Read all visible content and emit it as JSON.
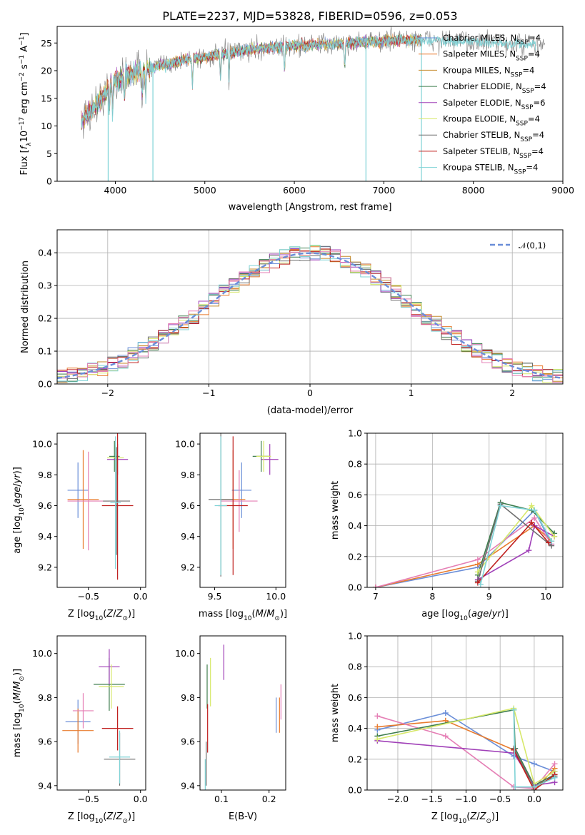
{
  "title": "PLATE=2237, MJD=53828, FIBERID=0596, z=0.053",
  "colors": [
    "#6a8ed8",
    "#e87b2e",
    "#c58a2a",
    "#3e7d4e",
    "#a040b8",
    "#d7e86a",
    "#6e6e6e",
    "#c0201f",
    "#7fd3d6",
    "#e57fb5"
  ],
  "chart_data": [
    {
      "id": "spectrum",
      "type": "line",
      "xlabel": "wavelength [Angstrom, rest frame]",
      "ylabel": "Flux [f_λ 10^-17 erg cm^-2 s^-1 A^-1]",
      "xlim": [
        3350,
        9000
      ],
      "ylim": [
        0,
        28
      ],
      "xticks": [
        4000,
        5000,
        6000,
        7000,
        8000,
        9000
      ],
      "yticks": [
        0,
        5,
        10,
        15,
        20,
        25
      ],
      "legend_position": "upper right",
      "series": [
        {
          "name": "Chabrier MILES, N_SSP=4",
          "color": "#6a8ed8"
        },
        {
          "name": "Salpeter MILES, N_SSP=4",
          "color": "#e87b2e"
        },
        {
          "name": "Kroupa MILES, N_SSP=4",
          "color": "#c58a2a"
        },
        {
          "name": "Chabrier ELODIE, N_SSP=4",
          "color": "#3e7d4e"
        },
        {
          "name": "Salpeter ELODIE, N_SSP=6",
          "color": "#a040b8"
        },
        {
          "name": "Kroupa ELODIE, N_SSP=4",
          "color": "#d7e86a"
        },
        {
          "name": "Chabrier STELIB, N_SSP=4",
          "color": "#6e6e6e"
        },
        {
          "name": "Salpeter STELIB, N_SSP=4",
          "color": "#c0201f"
        },
        {
          "name": "Kroupa STELIB, N_SSP=4",
          "color": "#7fd3d6"
        }
      ],
      "continuum": {
        "x": [
          3620,
          3800,
          3950,
          4100,
          4400,
          4800,
          5200,
          5600,
          6000,
          6400,
          6800,
          7200,
          7500,
          8000,
          8500,
          8800
        ],
        "y": [
          11,
          14,
          17.5,
          19,
          20.5,
          22,
          23,
          24,
          24.5,
          24.8,
          25.2,
          25.6,
          25.5,
          25.2,
          24.8,
          24.5
        ]
      },
      "dips": [
        {
          "x": 3920,
          "y": 0
        },
        {
          "x": 4420,
          "y": 0
        },
        {
          "x": 6800,
          "y": 0
        },
        {
          "x": 7420,
          "y": 0
        }
      ]
    },
    {
      "id": "residuals",
      "type": "histogram",
      "xlabel": "(data-model)/error",
      "ylabel": "Normed distribution",
      "xlim": [
        -2.5,
        2.5
      ],
      "ylim": [
        0,
        0.47
      ],
      "xticks": [
        -2,
        -1,
        0,
        1,
        2
      ],
      "yticks": [
        0.0,
        0.1,
        0.2,
        0.3,
        0.4
      ],
      "grid": true,
      "legend": "𝒩(0,1)",
      "legend_position": "upper right",
      "bin_width": 0.1
    },
    {
      "id": "age_vs_Z",
      "type": "errorbar",
      "xlabel": "Z [log10(Z/Z⊙)]",
      "ylabel": "age [log10(age/yr)]",
      "xlim": [
        -0.8,
        0.05
      ],
      "ylim": [
        9.07,
        10.07
      ],
      "xticks": [
        -0.5,
        0.0
      ],
      "yticks": [
        9.2,
        9.4,
        9.6,
        9.8,
        10.0
      ],
      "points": [
        {
          "x": -0.6,
          "xerr": 0.1,
          "y": 9.7,
          "yerr": 0.18,
          "c": 0
        },
        {
          "x": -0.55,
          "xerr": 0.15,
          "y": 9.64,
          "yerr": 0.32,
          "c": 1
        },
        {
          "x": -0.5,
          "xerr": 0.2,
          "y": 9.63,
          "yerr": 0.32,
          "c": 9
        },
        {
          "x": -0.25,
          "xerr": 0.05,
          "y": 9.92,
          "yerr": 0.1,
          "c": 3
        },
        {
          "x": -0.22,
          "xerr": 0.1,
          "y": 9.9,
          "yerr": 0.1,
          "c": 4
        },
        {
          "x": -0.24,
          "xerr": 0.08,
          "y": 9.91,
          "yerr": 0.08,
          "c": 5
        },
        {
          "x": -0.22,
          "xerr": 0.15,
          "y": 9.6,
          "yerr": 0.48,
          "c": 7
        },
        {
          "x": -0.23,
          "xerr": 0.13,
          "y": 9.63,
          "yerr": 0.35,
          "c": 6
        },
        {
          "x": -0.24,
          "xerr": 0.05,
          "y": 9.62,
          "yerr": 0.43,
          "c": 8
        }
      ]
    },
    {
      "id": "age_vs_mass",
      "type": "errorbar",
      "xlabel": "mass [log10(M/M⊙)]",
      "ylabel": "",
      "xlim": [
        9.38,
        10.08
      ],
      "ylim": [
        9.07,
        10.07
      ],
      "xticks": [
        9.5,
        10.0
      ],
      "yticks": [
        9.2,
        9.4,
        9.6,
        9.8,
        10.0
      ],
      "points": [
        {
          "x": 9.72,
          "xerr": 0.08,
          "y": 9.7,
          "yerr": 0.18,
          "c": 0
        },
        {
          "x": 9.65,
          "xerr": 0.1,
          "y": 9.64,
          "yerr": 0.32,
          "c": 1
        },
        {
          "x": 9.7,
          "xerr": 0.15,
          "y": 9.63,
          "yerr": 0.2,
          "c": 9
        },
        {
          "x": 9.88,
          "xerr": 0.07,
          "y": 9.92,
          "yerr": 0.1,
          "c": 3
        },
        {
          "x": 9.95,
          "xerr": 0.07,
          "y": 9.9,
          "yerr": 0.1,
          "c": 4
        },
        {
          "x": 9.9,
          "xerr": 0.06,
          "y": 9.92,
          "yerr": 0.1,
          "c": 5
        },
        {
          "x": 9.55,
          "xerr": 0.1,
          "y": 9.64,
          "yerr": 0.5,
          "c": 6
        },
        {
          "x": 9.65,
          "xerr": 0.12,
          "y": 9.6,
          "yerr": 0.45,
          "c": 7
        },
        {
          "x": 9.55,
          "xerr": 0.05,
          "y": 9.6,
          "yerr": 0.45,
          "c": 8
        }
      ]
    },
    {
      "id": "massweight_vs_age",
      "type": "line",
      "xlabel": "age [log10(age/yr)]",
      "ylabel": "mass weight",
      "xlim": [
        6.85,
        10.3
      ],
      "ylim": [
        0,
        1
      ],
      "xticks": [
        7,
        8,
        9,
        10
      ],
      "yticks": [
        0.0,
        0.2,
        0.4,
        0.6,
        0.8,
        1.0
      ],
      "grid": true,
      "series": [
        {
          "c": 0,
          "x": [
            7.0,
            8.8,
            9.8,
            10.1
          ],
          "y": [
            0.0,
            0.13,
            0.5,
            0.28
          ]
        },
        {
          "c": 1,
          "x": [
            7.0,
            8.8,
            9.8,
            10.1
          ],
          "y": [
            0.0,
            0.15,
            0.4,
            0.3
          ]
        },
        {
          "c": 9,
          "x": [
            7.0,
            8.8,
            9.8,
            10.1
          ],
          "y": [
            0.0,
            0.18,
            0.45,
            0.28
          ]
        },
        {
          "c": 3,
          "x": [
            8.8,
            9.2,
            9.75,
            10.15
          ],
          "y": [
            0.08,
            0.55,
            0.5,
            0.35
          ]
        },
        {
          "c": 4,
          "x": [
            8.8,
            9.7,
            9.8,
            10.15
          ],
          "y": [
            0.05,
            0.24,
            0.4,
            0.33
          ]
        },
        {
          "c": 5,
          "x": [
            8.8,
            9.75,
            10.15
          ],
          "y": [
            0.1,
            0.53,
            0.33
          ]
        },
        {
          "c": 6,
          "x": [
            8.8,
            9.2,
            10.1
          ],
          "y": [
            0.04,
            0.54,
            0.27
          ]
        },
        {
          "c": 7,
          "x": [
            8.8,
            9.75,
            10.05
          ],
          "y": [
            0.03,
            0.42,
            0.29
          ]
        },
        {
          "c": 8,
          "x": [
            8.85,
            9.2,
            9.8,
            10.1
          ],
          "y": [
            0.02,
            0.53,
            0.5,
            0.3
          ]
        }
      ]
    },
    {
      "id": "mass_vs_Z",
      "type": "errorbar",
      "xlabel": "Z [log10(Z/Z⊙)]",
      "ylabel": "mass [log10(M/M⊙)]",
      "xlim": [
        -0.8,
        0.05
      ],
      "ylim": [
        9.38,
        10.08
      ],
      "xticks": [
        -0.5,
        0.0
      ],
      "yticks": [
        9.4,
        9.6,
        9.8,
        10.0
      ],
      "points": [
        {
          "x": -0.6,
          "xerr": 0.12,
          "y": 9.69,
          "yerr": 0.1,
          "c": 0
        },
        {
          "x": -0.6,
          "xerr": 0.15,
          "y": 9.65,
          "yerr": 0.1,
          "c": 1
        },
        {
          "x": -0.55,
          "xerr": 0.1,
          "y": 9.74,
          "yerr": 0.08,
          "c": 9
        },
        {
          "x": -0.3,
          "xerr": 0.15,
          "y": 9.86,
          "yerr": 0.12,
          "c": 3
        },
        {
          "x": -0.3,
          "xerr": 0.1,
          "y": 9.94,
          "yerr": 0.08,
          "c": 4
        },
        {
          "x": -0.28,
          "xerr": 0.12,
          "y": 9.85,
          "yerr": 0.1,
          "c": 5
        },
        {
          "x": -0.2,
          "xerr": 0.15,
          "y": 9.52,
          "yerr": 0.12,
          "c": 6
        },
        {
          "x": -0.22,
          "xerr": 0.15,
          "y": 9.66,
          "yerr": 0.1,
          "c": 7
        },
        {
          "x": -0.2,
          "xerr": 0.1,
          "y": 9.53,
          "yerr": 0.12,
          "c": 8
        }
      ]
    },
    {
      "id": "mass_vs_ebv",
      "type": "errorbar",
      "xlabel": "E(B-V)",
      "ylabel": "",
      "xlim": [
        0.055,
        0.235
      ],
      "ylim": [
        9.38,
        10.08
      ],
      "xticks": [
        0.1,
        0.2
      ],
      "yticks": [
        9.4,
        9.6,
        9.8,
        10.0
      ],
      "points": [
        {
          "x": 0.215,
          "xerr": 0,
          "y": 9.72,
          "yerr": 0.08,
          "c": 0
        },
        {
          "x": 0.222,
          "xerr": 0,
          "y": 9.72,
          "yerr": 0.08,
          "c": 1
        },
        {
          "x": 0.225,
          "xerr": 0,
          "y": 9.78,
          "yerr": 0.08,
          "c": 9
        },
        {
          "x": 0.07,
          "xerr": 0,
          "y": 9.85,
          "yerr": 0.1,
          "c": 3
        },
        {
          "x": 0.105,
          "xerr": 0,
          "y": 9.96,
          "yerr": 0.08,
          "c": 4
        },
        {
          "x": 0.077,
          "xerr": 0,
          "y": 9.87,
          "yerr": 0.11,
          "c": 5
        },
        {
          "x": 0.068,
          "xerr": 0,
          "y": 9.5,
          "yerr": 0.1,
          "c": 6
        },
        {
          "x": 0.071,
          "xerr": 0,
          "y": 9.66,
          "yerr": 0.11,
          "c": 7
        },
        {
          "x": 0.066,
          "xerr": 0,
          "y": 9.45,
          "yerr": 0.07,
          "c": 8
        }
      ]
    },
    {
      "id": "massweight_vs_Z",
      "type": "line",
      "xlabel": "Z [log10(Z/Z⊙)]",
      "ylabel": "mass weight",
      "xlim": [
        -2.45,
        0.42
      ],
      "ylim": [
        0,
        1
      ],
      "xticks": [
        -2.0,
        -1.5,
        -1.0,
        -0.5,
        0.0
      ],
      "yticks": [
        0.0,
        0.2,
        0.4,
        0.6,
        0.8,
        1.0
      ],
      "grid": true,
      "series": [
        {
          "c": 0,
          "x": [
            -2.3,
            -1.3,
            -0.3,
            0.0,
            0.3
          ],
          "y": [
            0.39,
            0.5,
            0.22,
            0.17,
            0.12
          ]
        },
        {
          "c": 1,
          "x": [
            -2.3,
            -1.3,
            -0.3,
            0.0,
            0.3
          ],
          "y": [
            0.41,
            0.45,
            0.26,
            0.0,
            0.14
          ]
        },
        {
          "c": 9,
          "x": [
            -2.3,
            -1.3,
            -0.3,
            0.0,
            0.3
          ],
          "y": [
            0.48,
            0.35,
            0.02,
            0.01,
            0.17
          ]
        },
        {
          "c": 3,
          "x": [
            -2.3,
            -0.3,
            -0.28,
            0.0,
            0.3
          ],
          "y": [
            0.35,
            0.52,
            0.27,
            0.03,
            0.1
          ]
        },
        {
          "c": 4,
          "x": [
            -2.3,
            -0.3,
            0.0,
            0.3
          ],
          "y": [
            0.32,
            0.24,
            0.03,
            0.05
          ]
        },
        {
          "c": 5,
          "x": [
            -2.3,
            -0.3,
            0.0,
            0.3
          ],
          "y": [
            0.33,
            0.53,
            0.04,
            0.12
          ]
        },
        {
          "c": 6,
          "x": [
            -0.3,
            0.0,
            0.3
          ],
          "y": [
            0.27,
            0.02,
            0.09
          ]
        },
        {
          "c": 7,
          "x": [
            -0.3,
            0.0,
            0.3
          ],
          "y": [
            0.26,
            0.0,
            0.1
          ]
        },
        {
          "c": 8,
          "x": [
            -0.3,
            -0.28,
            0.0,
            0.3
          ],
          "y": [
            0.52,
            0.02,
            0.02,
            0.08
          ]
        }
      ]
    }
  ]
}
